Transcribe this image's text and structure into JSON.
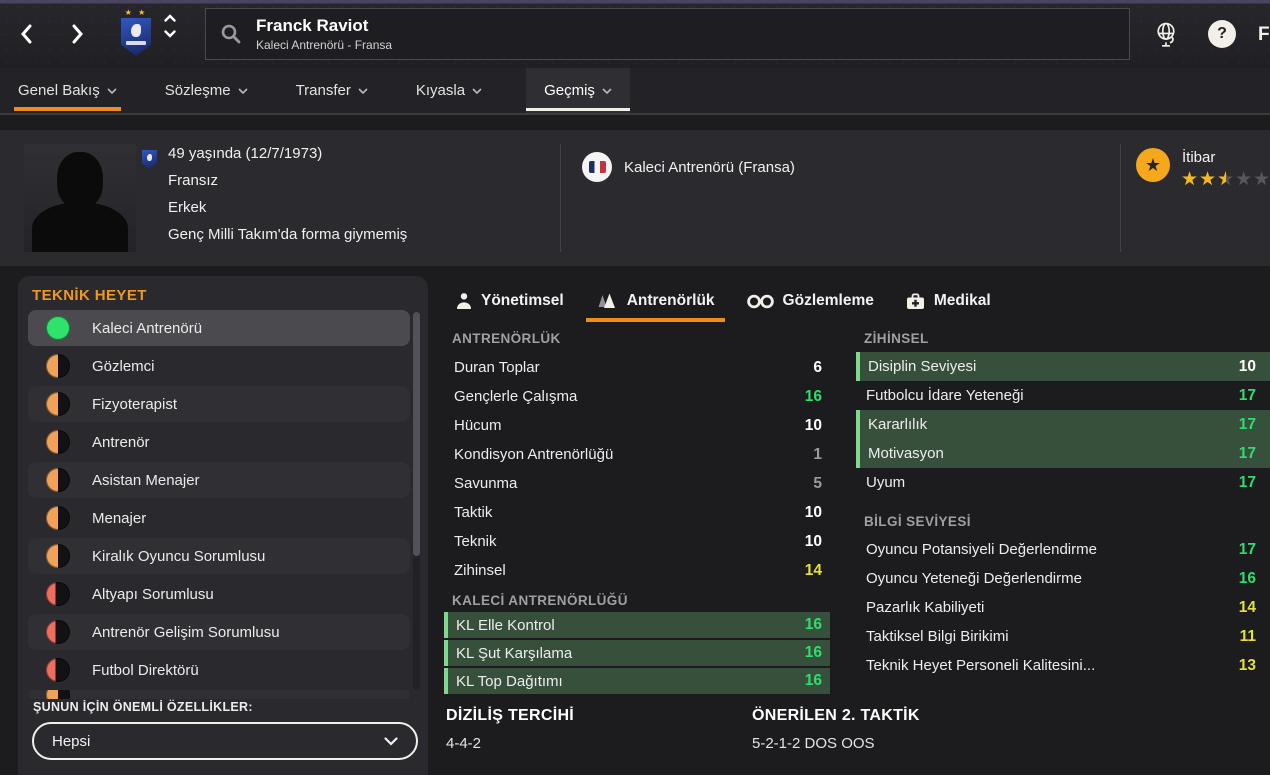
{
  "header": {
    "search": {
      "title": "Franck Raviot",
      "subtitle": "Kaleci Antrenörü - Fransa"
    },
    "partial_logo": "F"
  },
  "nav": {
    "tabs": [
      {
        "label": "Genel Bakış",
        "state": "current-page"
      },
      {
        "label": "Sözleşme",
        "state": "normal"
      },
      {
        "label": "Transfer",
        "state": "normal"
      },
      {
        "label": "Kıyasla",
        "state": "normal"
      },
      {
        "label": "Geçmiş",
        "state": "open-menu"
      }
    ]
  },
  "profile": {
    "details": [
      "49 yaşında (12/7/1973)",
      "Fransız",
      "Erkek",
      "Genç Milli Takım'da forma giymemiş"
    ],
    "role": "Kaleci Antrenörü (Fransa)",
    "reputation": {
      "label": "İtibar",
      "value": 2.5,
      "max": 5
    }
  },
  "sidebar": {
    "title": "TEKNİK HEYET",
    "items": [
      {
        "label": "Kaleci Antrenörü",
        "pct": 100,
        "color": "#2fe26b",
        "selected": true
      },
      {
        "label": "Gözlemci",
        "pct": 50,
        "color": "#f0a258"
      },
      {
        "label": "Fizyoterapist",
        "pct": 50,
        "color": "#f0a258"
      },
      {
        "label": "Antrenör",
        "pct": 50,
        "color": "#f0a258"
      },
      {
        "label": "Asistan Menajer",
        "pct": 50,
        "color": "#f0a258"
      },
      {
        "label": "Menajer",
        "pct": 50,
        "color": "#f0a258"
      },
      {
        "label": "Kiralık Oyuncu Sorumlusu",
        "pct": 50,
        "color": "#f0a258"
      },
      {
        "label": "Altyapı Sorumlusu",
        "pct": 40,
        "color": "#ee6d5d"
      },
      {
        "label": "Antrenör Gelişim Sorumlusu",
        "pct": 40,
        "color": "#ee6d5d"
      },
      {
        "label": "Futbol Direktörü",
        "pct": 40,
        "color": "#ee6d5d"
      },
      {
        "label": "",
        "pct": 50,
        "color": "#f0a258",
        "partial": true
      }
    ],
    "filter_label": "ŞUNUN İÇİN ÖNEMLİ ÖZELLİKLER:",
    "filter_value": "Hepsi"
  },
  "tabs": [
    {
      "label": "Yönetimsel",
      "icon": "person-icon"
    },
    {
      "label": "Antrenörlük",
      "icon": "training-cones-icon",
      "active": true
    },
    {
      "label": "Gözlemleme",
      "icon": "binoculars-icon"
    },
    {
      "label": "Medikal",
      "icon": "medical-bag-icon"
    }
  ],
  "sections": {
    "coaching": {
      "title": "ANTRENÖRLÜK",
      "rows": [
        {
          "label": "Duran Toplar",
          "value": 6
        },
        {
          "label": "Gençlerle Çalışma",
          "value": 16
        },
        {
          "label": "Hücum",
          "value": 10
        },
        {
          "label": "Kondisyon Antrenörlüğü",
          "value": 1
        },
        {
          "label": "Savunma",
          "value": 5
        },
        {
          "label": "Taktik",
          "value": 10
        },
        {
          "label": "Teknik",
          "value": 10
        },
        {
          "label": "Zihinsel",
          "value": 14
        }
      ]
    },
    "gk_coaching": {
      "title": "KALECİ ANTRENÖRLÜĞÜ",
      "rows": [
        {
          "label": "KL Elle Kontrol",
          "value": 16,
          "hl": true
        },
        {
          "label": "KL Şut Karşılama",
          "value": 16,
          "hl": true
        },
        {
          "label": "KL Top Dağıtımı",
          "value": 16,
          "hl": true
        }
      ]
    },
    "mental": {
      "title": "ZİHİNSEL",
      "rows": [
        {
          "label": "Disiplin Seviyesi",
          "value": 10,
          "hl": true
        },
        {
          "label": "Futbolcu İdare Yeteneği",
          "value": 17
        },
        {
          "label": "Kararlılık",
          "value": 17,
          "hl": true
        },
        {
          "label": "Motivasyon",
          "value": 17,
          "hl": true
        },
        {
          "label": "Uyum",
          "value": 17
        }
      ]
    },
    "knowledge": {
      "title": "BİLGİ SEVİYESİ",
      "rows": [
        {
          "label": "Oyuncu Potansiyeli Değerlendirme",
          "value": 17
        },
        {
          "label": "Oyuncu Yeteneği Değerlendirme",
          "value": 16
        },
        {
          "label": "Pazarlık Kabiliyeti",
          "value": 14
        },
        {
          "label": "Taktiksel Bilgi Birikimi",
          "value": 11
        },
        {
          "label": "Teknik Heyet Personeli Kalitesini...",
          "value": 13
        }
      ]
    }
  },
  "footer": {
    "formation": {
      "title": "DİZİLİŞ TERCİHİ",
      "value": "4-4-2"
    },
    "suggested": {
      "title": "ÖNERİLEN 2. TAKTİK",
      "value": "5-2-1-2 DOS OOS"
    }
  },
  "colors": {
    "accent_orange": "#f08c1e",
    "attr_green": "#2ede6c",
    "attr_yellow": "#e5e13b",
    "attr_white": "#ffffff",
    "attr_grey": "#9b9b9b",
    "highlight_bg": "#37503b",
    "star_gold": "#f5b81f"
  }
}
